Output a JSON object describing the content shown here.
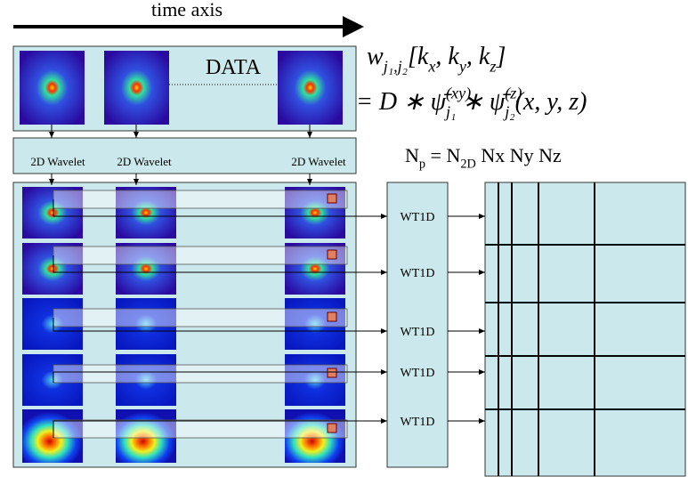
{
  "header": {
    "title": "time axis"
  },
  "data_label": "DATA",
  "equation": {
    "line1": [
      {
        "text": "w",
        "pos": "base"
      },
      {
        "text": "j₁,j₂",
        "pos": "sub"
      },
      {
        "text": "[k",
        "pos": "base"
      },
      {
        "text": "x",
        "pos": "sub"
      },
      {
        "text": ", k",
        "pos": "base"
      },
      {
        "text": "y",
        "pos": "sub"
      },
      {
        "text": ", k",
        "pos": "base"
      },
      {
        "text": "z",
        "pos": "sub"
      },
      {
        "text": "]",
        "pos": "base"
      }
    ],
    "line2": [
      {
        "text": "= D ∗ ψ̄",
        "pos": "base"
      },
      {
        "text": "(xy)",
        "pos": "sup"
      },
      {
        "text": "j₁",
        "pos": "sub"
      },
      {
        "text": " ∗ ψ̄",
        "pos": "base"
      },
      {
        "text": "(z)",
        "pos": "sup"
      },
      {
        "text": "j₂",
        "pos": "sub"
      },
      {
        "text": "(x, y, z)",
        "pos": "base"
      }
    ]
  },
  "wavelet_labels": [
    "2D Wavelet",
    "2D Wavelet",
    "2D Wavelet"
  ],
  "np_formula": [
    {
      "text": "N",
      "pos": "base"
    },
    {
      "text": "p",
      "pos": "sub"
    },
    {
      "text": " = N",
      "pos": "base"
    },
    {
      "text": "2D",
      "pos": "sub"
    },
    {
      "text": " Nx Ny Nz",
      "pos": "base"
    }
  ],
  "wt1d_labels": [
    "WT1D",
    "WT1D",
    "WT1D",
    "WT1D",
    "WT1D"
  ]
}
